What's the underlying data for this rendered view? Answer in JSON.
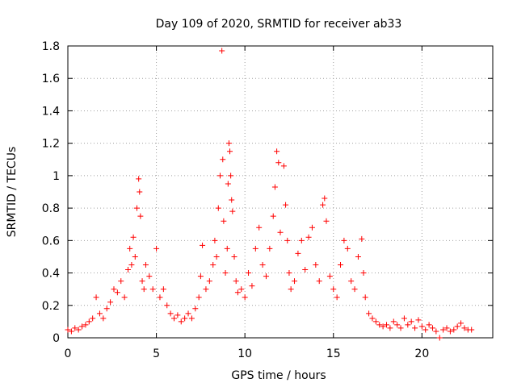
{
  "chart_data": {
    "type": "scatter",
    "title": "Day 109 of 2020, SRMTID for receiver ab33",
    "xlabel": "GPS time / hours",
    "ylabel": "SRMTID / TECUs",
    "xlim": [
      0,
      24
    ],
    "ylim": [
      0,
      1.8
    ],
    "x_ticks": [
      0,
      5,
      10,
      15,
      20
    ],
    "y_ticks": [
      0,
      0.2,
      0.4,
      0.6,
      0.8,
      1,
      1.2,
      1.4,
      1.6,
      1.8
    ],
    "x_tick_labels": [
      "0",
      "5",
      "10",
      "15",
      "20"
    ],
    "y_tick_labels": [
      "0",
      "0.2",
      "0.4",
      "0.6",
      "0.8",
      "1",
      "1.2",
      "1.4",
      "1.6",
      "1.8"
    ],
    "grid": true,
    "marker": "+",
    "series": [
      {
        "name": "SRMTID ab33",
        "color": "#ff0000",
        "points": [
          [
            0.0,
            0.05
          ],
          [
            0.2,
            0.04
          ],
          [
            0.4,
            0.06
          ],
          [
            0.6,
            0.05
          ],
          [
            0.8,
            0.07
          ],
          [
            1.0,
            0.08
          ],
          [
            1.2,
            0.1
          ],
          [
            1.4,
            0.12
          ],
          [
            1.6,
            0.25
          ],
          [
            1.8,
            0.15
          ],
          [
            2.0,
            0.12
          ],
          [
            2.2,
            0.18
          ],
          [
            2.4,
            0.22
          ],
          [
            2.6,
            0.3
          ],
          [
            2.8,
            0.28
          ],
          [
            3.0,
            0.35
          ],
          [
            3.2,
            0.25
          ],
          [
            3.4,
            0.42
          ],
          [
            3.5,
            0.55
          ],
          [
            3.6,
            0.45
          ],
          [
            3.7,
            0.62
          ],
          [
            3.8,
            0.5
          ],
          [
            3.9,
            0.8
          ],
          [
            4.0,
            0.98
          ],
          [
            4.05,
            0.9
          ],
          [
            4.1,
            0.75
          ],
          [
            4.2,
            0.35
          ],
          [
            4.3,
            0.3
          ],
          [
            4.4,
            0.45
          ],
          [
            4.6,
            0.38
          ],
          [
            4.8,
            0.3
          ],
          [
            5.0,
            0.55
          ],
          [
            5.2,
            0.25
          ],
          [
            5.4,
            0.3
          ],
          [
            5.6,
            0.2
          ],
          [
            5.8,
            0.15
          ],
          [
            6.0,
            0.12
          ],
          [
            6.2,
            0.14
          ],
          [
            6.4,
            0.1
          ],
          [
            6.6,
            0.12
          ],
          [
            6.8,
            0.15
          ],
          [
            7.0,
            0.12
          ],
          [
            7.2,
            0.18
          ],
          [
            7.4,
            0.25
          ],
          [
            7.5,
            0.38
          ],
          [
            7.6,
            0.57
          ],
          [
            7.8,
            0.3
          ],
          [
            8.0,
            0.35
          ],
          [
            8.2,
            0.45
          ],
          [
            8.3,
            0.6
          ],
          [
            8.4,
            0.5
          ],
          [
            8.5,
            0.8
          ],
          [
            8.6,
            1.0
          ],
          [
            8.7,
            1.77
          ],
          [
            8.75,
            1.1
          ],
          [
            8.8,
            0.72
          ],
          [
            8.9,
            0.4
          ],
          [
            9.0,
            0.55
          ],
          [
            9.05,
            0.95
          ],
          [
            9.1,
            1.2
          ],
          [
            9.15,
            1.15
          ],
          [
            9.2,
            1.0
          ],
          [
            9.25,
            0.85
          ],
          [
            9.3,
            0.78
          ],
          [
            9.4,
            0.5
          ],
          [
            9.5,
            0.35
          ],
          [
            9.6,
            0.28
          ],
          [
            9.8,
            0.3
          ],
          [
            10.0,
            0.25
          ],
          [
            10.2,
            0.4
          ],
          [
            10.4,
            0.32
          ],
          [
            10.6,
            0.55
          ],
          [
            10.8,
            0.68
          ],
          [
            11.0,
            0.45
          ],
          [
            11.2,
            0.38
          ],
          [
            11.4,
            0.55
          ],
          [
            11.6,
            0.75
          ],
          [
            11.7,
            0.93
          ],
          [
            11.8,
            1.15
          ],
          [
            11.9,
            1.08
          ],
          [
            12.0,
            0.65
          ],
          [
            12.2,
            1.06
          ],
          [
            12.3,
            0.82
          ],
          [
            12.4,
            0.6
          ],
          [
            12.5,
            0.4
          ],
          [
            12.6,
            0.3
          ],
          [
            12.8,
            0.35
          ],
          [
            13.0,
            0.52
          ],
          [
            13.2,
            0.6
          ],
          [
            13.4,
            0.42
          ],
          [
            13.6,
            0.62
          ],
          [
            13.8,
            0.68
          ],
          [
            14.0,
            0.45
          ],
          [
            14.2,
            0.35
          ],
          [
            14.4,
            0.82
          ],
          [
            14.5,
            0.86
          ],
          [
            14.6,
            0.72
          ],
          [
            14.8,
            0.38
          ],
          [
            15.0,
            0.3
          ],
          [
            15.2,
            0.25
          ],
          [
            15.4,
            0.45
          ],
          [
            15.6,
            0.6
          ],
          [
            15.8,
            0.55
          ],
          [
            16.0,
            0.35
          ],
          [
            16.2,
            0.3
          ],
          [
            16.4,
            0.5
          ],
          [
            16.6,
            0.61
          ],
          [
            16.7,
            0.4
          ],
          [
            16.8,
            0.25
          ],
          [
            17.0,
            0.15
          ],
          [
            17.2,
            0.12
          ],
          [
            17.4,
            0.1
          ],
          [
            17.6,
            0.08
          ],
          [
            17.8,
            0.07
          ],
          [
            18.0,
            0.08
          ],
          [
            18.2,
            0.06
          ],
          [
            18.4,
            0.1
          ],
          [
            18.6,
            0.08
          ],
          [
            18.8,
            0.06
          ],
          [
            19.0,
            0.12
          ],
          [
            19.2,
            0.08
          ],
          [
            19.4,
            0.1
          ],
          [
            19.6,
            0.06
          ],
          [
            19.8,
            0.11
          ],
          [
            20.0,
            0.07
          ],
          [
            20.2,
            0.05
          ],
          [
            20.4,
            0.08
          ],
          [
            20.6,
            0.06
          ],
          [
            20.8,
            0.04
          ],
          [
            21.0,
            0.0
          ],
          [
            21.2,
            0.05
          ],
          [
            21.4,
            0.06
          ],
          [
            21.6,
            0.04
          ],
          [
            21.8,
            0.05
          ],
          [
            22.0,
            0.07
          ],
          [
            22.2,
            0.09
          ],
          [
            22.4,
            0.06
          ],
          [
            22.6,
            0.05
          ],
          [
            22.8,
            0.05
          ]
        ]
      }
    ]
  }
}
